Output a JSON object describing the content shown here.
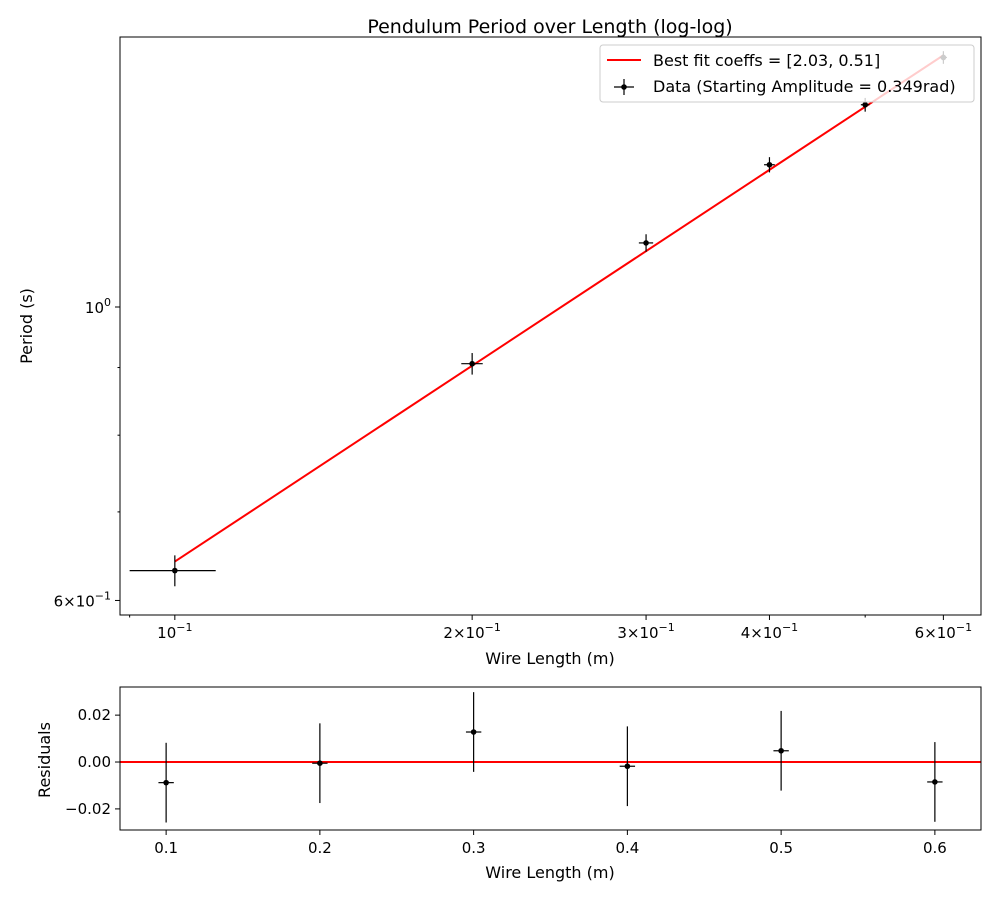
{
  "chart_data": [
    {
      "type": "scatter",
      "title": "Pendulum Period over Length (log-log)",
      "xlabel": "Wire Length (m)",
      "ylabel": "Period (s)",
      "xscale": "log",
      "yscale": "log",
      "xlim": [
        0.088,
        0.655
      ],
      "ylim": [
        0.585,
        1.6
      ],
      "xticks": [
        {
          "value": 0.1,
          "base": "10",
          "exp": "−1"
        },
        {
          "value": 0.2,
          "mant": "2",
          "base": "10",
          "exp": "−1"
        },
        {
          "value": 0.3,
          "mant": "3",
          "base": "10",
          "exp": "−1"
        },
        {
          "value": 0.4,
          "mant": "4",
          "base": "10",
          "exp": "−1"
        },
        {
          "value": 0.6,
          "mant": "6",
          "base": "10",
          "exp": "−1"
        }
      ],
      "yticks": [
        {
          "value": 0.6,
          "mant": "6",
          "base": "10",
          "exp": "−1"
        },
        {
          "value": 1.0,
          "base": "10",
          "exp": "0"
        }
      ],
      "grid": false,
      "legend_position": "top-right",
      "legend": [
        "Best fit coeffs = [2.03, 0.51]",
        "Data (Starting Amplitude = 0.349rad)"
      ],
      "series": [
        {
          "name": "Best fit coeffs = [2.03, 0.51]",
          "kind": "line",
          "color": "#ff0000",
          "x": [
            0.1,
            0.6
          ],
          "y": [
            0.642,
            1.55
          ]
        },
        {
          "name": "Data (Starting Amplitude = 0.349rad)",
          "kind": "errorbar",
          "color": "#000000",
          "x": [
            0.1,
            0.2,
            0.3,
            0.4,
            0.5,
            0.6
          ],
          "y": [
            0.632,
            0.906,
            1.118,
            1.281,
            1.422,
            1.544
          ],
          "xerr": [
            0.01,
            0.005,
            0.005,
            0.005,
            0.005,
            0.005
          ],
          "yerr": [
            0.017,
            0.017,
            0.017,
            0.017,
            0.017,
            0.017
          ]
        }
      ]
    },
    {
      "type": "scatter",
      "title": "",
      "xlabel": "Wire Length (m)",
      "ylabel": "Residuals",
      "xlim": [
        0.07,
        0.63
      ],
      "ylim": [
        -0.029,
        0.032
      ],
      "xticks": [
        "0.1",
        "0.2",
        "0.3",
        "0.4",
        "0.5",
        "0.6"
      ],
      "yticks": [
        "−0.02",
        "0.00",
        "0.02"
      ],
      "grid": false,
      "zero_line_color": "#ff0000",
      "series": [
        {
          "kind": "errorbar",
          "color": "#000000",
          "x": [
            0.1,
            0.2,
            0.3,
            0.4,
            0.5,
            0.6
          ],
          "y": [
            -0.0088,
            -0.0005,
            0.0128,
            -0.0018,
            0.0048,
            -0.0085
          ],
          "xerr": [
            0.005,
            0.005,
            0.005,
            0.005,
            0.005,
            0.005
          ],
          "yerr": [
            0.017,
            0.017,
            0.017,
            0.017,
            0.017,
            0.017
          ]
        }
      ]
    }
  ]
}
